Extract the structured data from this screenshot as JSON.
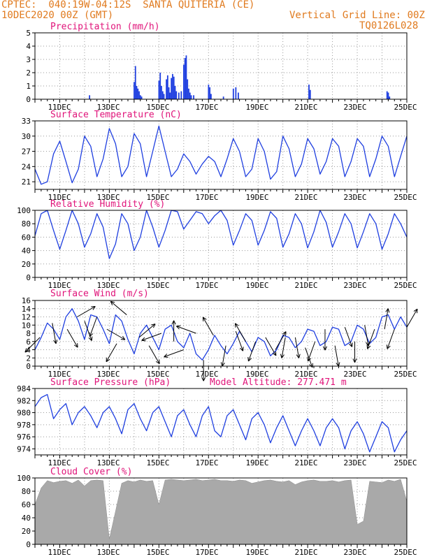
{
  "header": {
    "line1": "CPTEC:  040:19W-04:12S  SANTA QUITERIA (CE)",
    "line2": "10DEC2020 00Z (GMT)",
    "right1": "Vertical Grid Line: 00Z",
    "right2": "TQ0126L028"
  },
  "colors": {
    "header": "#e07a1e",
    "title": "#e0147a",
    "series": "#1f3fe0",
    "cloud": "#a9a9a9",
    "wind": "#000000"
  },
  "x_tick_labels": [
    "11DEC",
    "13DEC",
    "15DEC",
    "17DEC",
    "19DEC",
    "21DEC",
    "23DEC",
    "25DEC"
  ],
  "chart_data": [
    {
      "id": "precipitation",
      "type": "bar",
      "title": "Precipitation (mm/h)",
      "x_unit": "days since 10DEC2020 00Z",
      "xlim": [
        0,
        15
      ],
      "ylim": [
        0,
        5
      ],
      "yticks": [
        0,
        1,
        2,
        3,
        4,
        5
      ],
      "grid": true,
      "x": [
        2.2,
        4.0,
        4.05,
        4.1,
        4.15,
        4.2,
        4.25,
        4.3,
        5.0,
        5.05,
        5.1,
        5.15,
        5.2,
        5.3,
        5.35,
        5.4,
        5.45,
        5.5,
        5.55,
        5.6,
        5.65,
        5.7,
        5.8,
        5.9,
        6.0,
        6.05,
        6.1,
        6.15,
        6.2,
        6.25,
        6.3,
        6.4,
        7.0,
        7.05,
        7.1,
        7.6,
        8.0,
        8.1,
        8.2,
        11.05,
        11.1,
        14.2,
        14.25,
        14.3
      ],
      "values": [
        0.3,
        1.3,
        2.5,
        1.0,
        0.8,
        0.6,
        0.3,
        0.2,
        1.4,
        2.0,
        1.0,
        0.6,
        0.4,
        1.5,
        1.8,
        0.9,
        0.5,
        1.6,
        1.9,
        1.7,
        1.0,
        0.6,
        0.5,
        0.6,
        2.6,
        3.1,
        3.3,
        1.5,
        0.8,
        0.5,
        0.3,
        0.3,
        1.1,
        0.9,
        0.4,
        0.2,
        0.8,
        0.9,
        0.5,
        1.1,
        0.7,
        0.6,
        0.5,
        0.2
      ]
    },
    {
      "id": "temperature",
      "type": "line",
      "title": "Surface Temperature (nC)",
      "x_unit": "days since 10DEC2020 00Z",
      "xlim": [
        0,
        15
      ],
      "ylim": [
        19.5,
        33
      ],
      "yticks": [
        21,
        24,
        27,
        30,
        33
      ],
      "grid": true,
      "x": [
        0,
        0.25,
        0.5,
        0.75,
        1,
        1.25,
        1.5,
        1.75,
        2,
        2.25,
        2.5,
        2.75,
        3,
        3.25,
        3.5,
        3.75,
        4,
        4.25,
        4.5,
        4.75,
        5,
        5.25,
        5.5,
        5.75,
        6,
        6.25,
        6.5,
        6.75,
        7,
        7.25,
        7.5,
        7.75,
        8,
        8.25,
        8.5,
        8.75,
        9,
        9.25,
        9.5,
        9.75,
        10,
        10.25,
        10.5,
        10.75,
        11,
        11.25,
        11.5,
        11.75,
        12,
        12.25,
        12.5,
        12.75,
        13,
        13.25,
        13.5,
        13.75,
        14,
        14.25,
        14.5,
        14.75,
        15
      ],
      "values": [
        23.5,
        20.5,
        21.0,
        26.5,
        29.0,
        25.0,
        20.8,
        23.5,
        30.0,
        28.0,
        22.0,
        25.5,
        31.5,
        28.5,
        22.0,
        24.0,
        30.5,
        28.5,
        22.0,
        27.0,
        32.0,
        27.0,
        22.0,
        23.5,
        26.5,
        25.0,
        22.5,
        24.5,
        26.0,
        25.0,
        22.0,
        25.5,
        29.5,
        27.0,
        22.0,
        23.5,
        29.5,
        27.0,
        21.5,
        23.0,
        30.0,
        27.5,
        22.0,
        24.5,
        29.5,
        27.5,
        22.5,
        25.0,
        29.5,
        28.0,
        22.0,
        25.0,
        29.5,
        28.0,
        22.0,
        25.5,
        30.0,
        28.0,
        22.0,
        26.0,
        30.0
      ]
    },
    {
      "id": "humidity",
      "type": "line",
      "title": "Relative Humidity (%)",
      "x_unit": "days since 10DEC2020 00Z",
      "xlim": [
        0,
        15
      ],
      "ylim": [
        0,
        100
      ],
      "yticks": [
        0,
        20,
        40,
        60,
        80,
        100
      ],
      "grid": true,
      "x": [
        0,
        0.25,
        0.5,
        0.75,
        1,
        1.25,
        1.5,
        1.75,
        2,
        2.25,
        2.5,
        2.75,
        3,
        3.25,
        3.5,
        3.75,
        4,
        4.25,
        4.5,
        4.75,
        5,
        5.25,
        5.5,
        5.75,
        6,
        6.25,
        6.5,
        6.75,
        7,
        7.25,
        7.5,
        7.75,
        8,
        8.25,
        8.5,
        8.75,
        9,
        9.25,
        9.5,
        9.75,
        10,
        10.25,
        10.5,
        10.75,
        11,
        11.25,
        11.5,
        11.75,
        12,
        12.25,
        12.5,
        12.75,
        13,
        13.25,
        13.5,
        13.75,
        14,
        14.25,
        14.5,
        14.75,
        15
      ],
      "values": [
        62,
        95,
        100,
        70,
        42,
        70,
        100,
        80,
        45,
        65,
        95,
        75,
        28,
        50,
        95,
        80,
        40,
        60,
        100,
        75,
        45,
        70,
        100,
        98,
        72,
        85,
        98,
        95,
        80,
        92,
        100,
        85,
        48,
        70,
        95,
        85,
        48,
        70,
        98,
        88,
        45,
        65,
        95,
        80,
        44,
        68,
        100,
        82,
        45,
        68,
        95,
        80,
        44,
        68,
        95,
        80,
        42,
        65,
        95,
        80,
        60
      ]
    },
    {
      "id": "wind",
      "type": "line",
      "title": "Surface Wind (m/s)",
      "x_unit": "days since 10DEC2020 00Z",
      "xlim": [
        0,
        15
      ],
      "ylim": [
        0,
        16
      ],
      "yticks": [
        0,
        2,
        4,
        6,
        8,
        10,
        12,
        14,
        16
      ],
      "grid": true,
      "x": [
        0,
        0.25,
        0.5,
        0.75,
        1,
        1.25,
        1.5,
        1.75,
        2,
        2.25,
        2.5,
        2.75,
        3,
        3.25,
        3.5,
        3.75,
        4,
        4.25,
        4.5,
        4.75,
        5,
        5.25,
        5.5,
        5.75,
        6,
        6.25,
        6.5,
        6.75,
        7,
        7.25,
        7.5,
        7.75,
        8,
        8.25,
        8.5,
        8.75,
        9,
        9.25,
        9.5,
        9.75,
        10,
        10.25,
        10.5,
        10.75,
        11,
        11.25,
        11.5,
        11.75,
        12,
        12.25,
        12.5,
        12.75,
        13,
        13.25,
        13.5,
        13.75,
        14,
        14.25,
        14.5,
        14.75,
        15
      ],
      "values": [
        4.0,
        7.0,
        10.5,
        9.0,
        6.5,
        12.0,
        14.0,
        11.0,
        6.5,
        12.5,
        12.0,
        9.0,
        5.5,
        12.5,
        11.0,
        6.5,
        3.0,
        8.0,
        10.0,
        7.0,
        4.0,
        9.0,
        10.0,
        6.0,
        4.5,
        8.0,
        3.0,
        1.5,
        4.0,
        7.5,
        5.0,
        3.0,
        5.5,
        8.5,
        6.0,
        3.5,
        7.0,
        6.0,
        2.5,
        4.0,
        7.5,
        7.0,
        4.5,
        6.0,
        9.0,
        8.5,
        5.0,
        6.0,
        9.5,
        9.0,
        5.0,
        6.0,
        10.0,
        9.0,
        5.5,
        7.0,
        12.0,
        12.5,
        9.0,
        12.0,
        9.5
      ],
      "arrows": {
        "x": [
          0.2,
          0.7,
          1.3,
          1.7,
          2.0,
          2.5,
          2.9,
          3.3,
          3.7,
          4.2,
          4.6,
          5.1,
          5.6,
          6.0,
          6.5,
          6.8,
          7.2,
          7.7,
          8.1,
          8.5,
          8.9,
          9.3,
          9.7,
          10.1,
          10.5,
          10.9,
          11.3,
          11.7,
          12.1,
          12.5,
          12.9,
          13.3,
          13.7,
          14.1,
          14.5,
          15.0
        ],
        "direction_deg": [
          225,
          280,
          300,
          30,
          290,
          250,
          330,
          240,
          140,
          40,
          300,
          200,
          90,
          200,
          160,
          270,
          120,
          260,
          290,
          120,
          250,
          300,
          60,
          260,
          280,
          290,
          250,
          270,
          280,
          290,
          270,
          280,
          250,
          80,
          250,
          60
        ],
        "speed": [
          7.0,
          10.5,
          9.0,
          12.0,
          11.0,
          12.0,
          9.0,
          5.5,
          12.5,
          7.0,
          5.0,
          8.0,
          6.0,
          4.0,
          8.0,
          1.5,
          7.5,
          5.0,
          8.5,
          6.0,
          6.0,
          7.0,
          4.0,
          7.0,
          7.0,
          4.5,
          6.0,
          9.0,
          5.0,
          9.5,
          6.0,
          10.0,
          9.0,
          9.0,
          9.0,
          9.5
        ]
      }
    },
    {
      "id": "pressure",
      "type": "line",
      "title": "Surface Pressure (hPa)",
      "annotation": "Model Altitude: 277.471 m",
      "x_unit": "days since 10DEC2020 00Z",
      "xlim": [
        0,
        15
      ],
      "ylim": [
        973,
        984
      ],
      "yticks": [
        974,
        976,
        978,
        980,
        982,
        984
      ],
      "grid": true,
      "x": [
        0,
        0.25,
        0.5,
        0.75,
        1,
        1.25,
        1.5,
        1.75,
        2,
        2.25,
        2.5,
        2.75,
        3,
        3.25,
        3.5,
        3.75,
        4,
        4.25,
        4.5,
        4.75,
        5,
        5.25,
        5.5,
        5.75,
        6,
        6.25,
        6.5,
        6.75,
        7,
        7.25,
        7.5,
        7.75,
        8,
        8.25,
        8.5,
        8.75,
        9,
        9.25,
        9.5,
        9.75,
        10,
        10.25,
        10.5,
        10.75,
        11,
        11.25,
        11.5,
        11.75,
        12,
        12.25,
        12.5,
        12.75,
        13,
        13.25,
        13.5,
        13.75,
        14,
        14.25,
        14.5,
        14.75,
        15
      ],
      "values": [
        981.0,
        982.5,
        983.0,
        979.0,
        980.5,
        981.5,
        978.0,
        980.0,
        981.0,
        979.5,
        977.5,
        980.0,
        981.0,
        979.0,
        976.5,
        980.5,
        981.5,
        979.0,
        977.0,
        980.0,
        981.0,
        978.5,
        976.0,
        979.5,
        980.5,
        978.0,
        976.0,
        979.5,
        981.0,
        977.0,
        976.0,
        979.5,
        980.5,
        978.0,
        975.5,
        979.0,
        980.0,
        978.0,
        975.0,
        977.5,
        979.5,
        977.0,
        974.5,
        977.0,
        979.0,
        977.0,
        974.5,
        977.5,
        979.0,
        977.5,
        974.0,
        977.0,
        978.5,
        976.5,
        973.5,
        976.0,
        978.5,
        977.5,
        973.5,
        975.5,
        977.0
      ]
    },
    {
      "id": "cloud",
      "type": "area",
      "title": "Cloud Cover (%)",
      "x_unit": "days since 10DEC2020 00Z",
      "xlim": [
        0,
        15
      ],
      "ylim": [
        0,
        100
      ],
      "yticks": [
        0,
        20,
        40,
        60,
        80,
        100
      ],
      "grid": true,
      "x": [
        0,
        0.25,
        0.5,
        0.75,
        1,
        1.25,
        1.5,
        1.75,
        2,
        2.25,
        2.5,
        2.75,
        3,
        3.25,
        3.5,
        3.75,
        4,
        4.25,
        4.5,
        4.75,
        5,
        5.25,
        5.5,
        5.75,
        6,
        6.25,
        6.5,
        6.75,
        7,
        7.25,
        7.5,
        7.75,
        8,
        8.25,
        8.5,
        8.75,
        9,
        9.25,
        9.5,
        9.75,
        10,
        10.25,
        10.5,
        10.75,
        11,
        11.25,
        11.5,
        11.75,
        12,
        12.25,
        12.5,
        12.75,
        13,
        13.25,
        13.5,
        13.75,
        14,
        14.25,
        14.5,
        14.75,
        15
      ],
      "values": [
        60,
        85,
        96,
        93,
        95,
        96,
        92,
        97,
        88,
        96,
        97,
        96,
        8,
        50,
        92,
        96,
        94,
        97,
        95,
        96,
        60,
        97,
        98,
        97,
        96,
        97,
        98,
        96,
        97,
        98,
        96,
        96,
        95,
        97,
        96,
        92,
        94,
        96,
        97,
        95,
        94,
        96,
        90,
        94,
        96,
        97,
        95,
        95,
        96,
        94,
        96,
        97,
        30,
        35,
        95,
        94,
        93,
        97,
        95,
        98,
        65
      ]
    }
  ]
}
